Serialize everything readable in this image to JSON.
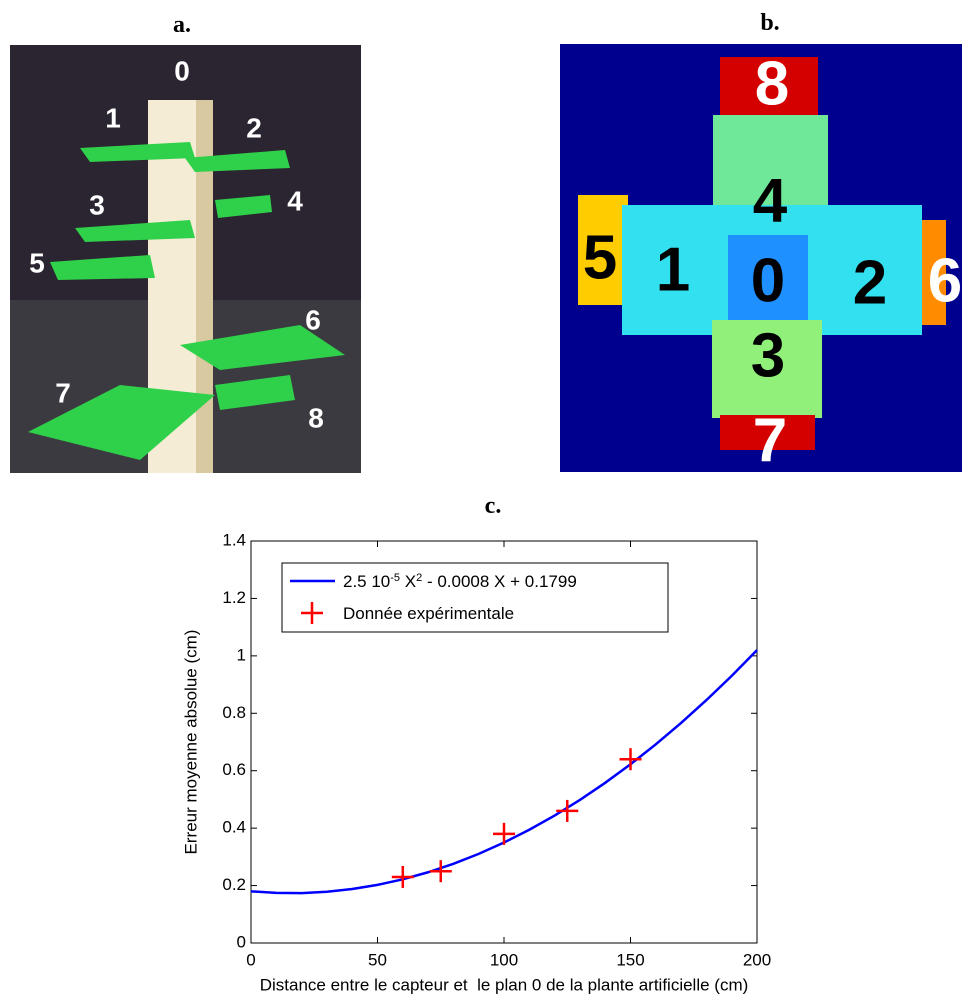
{
  "panels": {
    "a": {
      "label": "a.",
      "numbers": [
        "0",
        "1",
        "2",
        "3",
        "4",
        "5",
        "6",
        "7",
        "8"
      ]
    },
    "b": {
      "label": "b.",
      "numbers": [
        "0",
        "1",
        "2",
        "3",
        "4",
        "5",
        "6",
        "7",
        "8"
      ]
    },
    "c": {
      "label": "c."
    }
  },
  "chart_data": {
    "type": "line",
    "x_label": "Distance entre le capteur et  le plan 0 de la plante artificielle (cm)",
    "y_label": "Erreur moyenne absolue (cm)",
    "xlim": [
      0,
      200
    ],
    "xticks": [
      0,
      50,
      100,
      150,
      200
    ],
    "ylim": [
      0,
      1.4
    ],
    "yticks": [
      0,
      0.2,
      0.4,
      0.6,
      0.8,
      1,
      1.2,
      1.4
    ],
    "legend": "upper left",
    "series": [
      {
        "type": "line",
        "color": "#0000ff",
        "name": [
          {
            "text": "2.5 10"
          },
          {
            "sup": "-5"
          },
          {
            "text": " X"
          },
          {
            "sup": "2"
          },
          {
            "text": " - 0.0008 X + 0.1799"
          }
        ],
        "x": [
          0,
          10,
          20,
          30,
          40,
          50,
          60,
          70,
          80,
          90,
          100,
          110,
          120,
          130,
          140,
          150,
          160,
          170,
          180,
          190,
          200
        ],
        "values": [
          0.1799,
          0.1744,
          0.1739,
          0.1784,
          0.1879,
          0.2024,
          0.2219,
          0.2464,
          0.2759,
          0.3104,
          0.3499,
          0.3944,
          0.4439,
          0.4984,
          0.5579,
          0.6224,
          0.6919,
          0.7664,
          0.8459,
          0.9304,
          1.0199
        ]
      },
      {
        "type": "scatter",
        "marker": "+",
        "color": "#ff0000",
        "name": [
          {
            "text": "Donnée expérimentale"
          }
        ],
        "x": [
          60,
          75,
          100,
          125,
          150
        ],
        "values": [
          0.23,
          0.25,
          0.38,
          0.46,
          0.64
        ]
      }
    ]
  }
}
